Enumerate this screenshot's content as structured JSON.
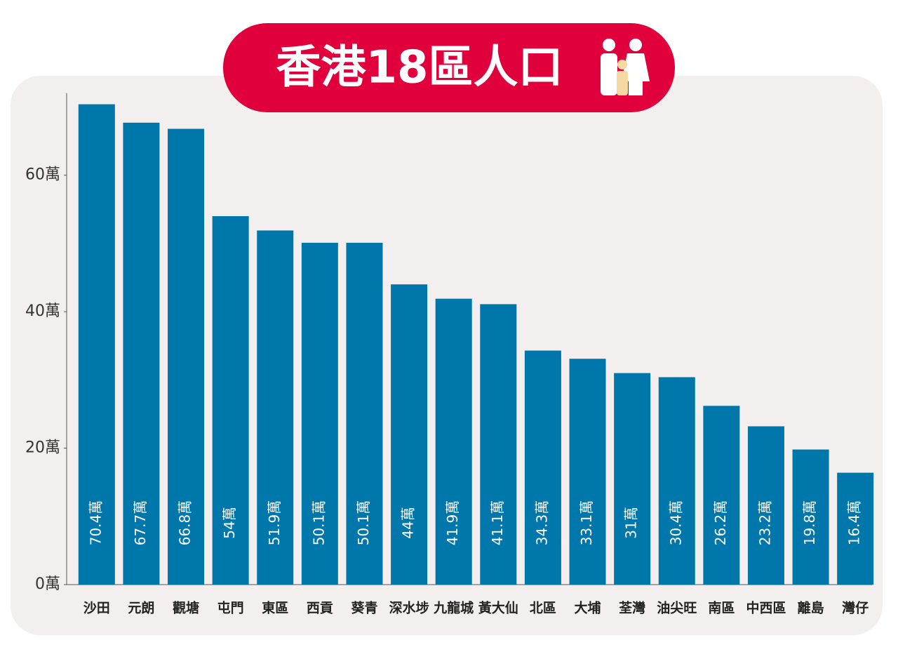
{
  "chart_data": {
    "type": "bar",
    "title": "香港18區人口",
    "categories": [
      "沙田",
      "元朗",
      "觀塘",
      "屯門",
      "東區",
      "西貢",
      "葵青",
      "深水埗",
      "九龍城",
      "黃大仙",
      "北區",
      "大埔",
      "荃灣",
      "油尖旺",
      "南區",
      "中西區",
      "離島",
      "灣仔"
    ],
    "values": [
      70.4,
      67.7,
      66.8,
      54,
      51.9,
      50.1,
      50.1,
      44,
      41.9,
      41.1,
      34.3,
      33.1,
      31,
      30.4,
      26.2,
      23.2,
      19.8,
      16.4
    ],
    "value_labels": [
      "70.4萬",
      "67.7萬",
      "66.8萬",
      "54萬",
      "51.9萬",
      "50.1萬",
      "50.1萬",
      "44萬",
      "41.9萬",
      "41.1萬",
      "34.3萬",
      "33.1萬",
      "31萬",
      "30.4萬",
      "26.2萬",
      "23.2萬",
      "19.8萬",
      "16.4萬"
    ],
    "color": "#0077aa",
    "ylim": [
      0,
      72
    ],
    "yticks": [
      {
        "value": 0,
        "label": "0萬"
      },
      {
        "value": 20,
        "label": "20萬"
      },
      {
        "value": 40,
        "label": "40萬"
      },
      {
        "value": 60,
        "label": "60萬"
      }
    ],
    "grid": false
  }
}
